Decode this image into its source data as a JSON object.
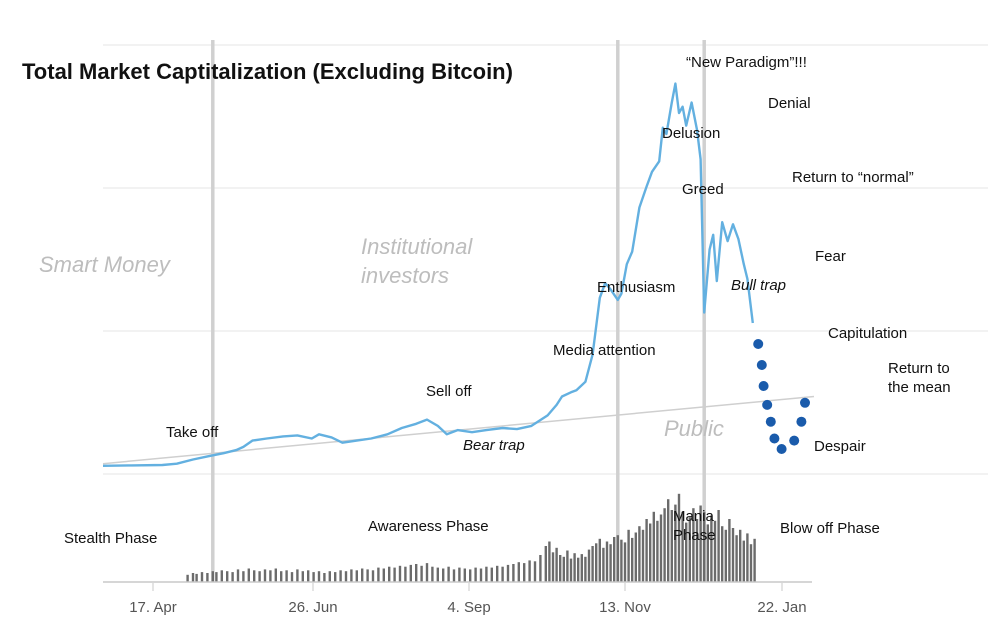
{
  "chart_data": {
    "type": "line",
    "title": "Total Market Captitalization (Excluding Bitcoin)",
    "x_tick_labels": [
      "17. Apr",
      "26. Jun",
      "4. Sep",
      "13. Nov",
      "22. Jan"
    ],
    "grid": "horizontal",
    "phase_labels_large": [
      "Smart Money",
      "Institutional",
      "investors",
      "Public"
    ],
    "phase_labels": [
      "Stealth Phase",
      "Awareness Phase",
      "Mania",
      "Phase",
      "Blow off Phase"
    ],
    "annotations": [
      {
        "text": "“New Paradigm”!!!",
        "italic": false
      },
      {
        "text": "Denial",
        "italic": false
      },
      {
        "text": "Delusion",
        "italic": false
      },
      {
        "text": "Greed",
        "italic": false
      },
      {
        "text": "Return to “normal”",
        "italic": false
      },
      {
        "text": "Fear",
        "italic": false
      },
      {
        "text": "Bull trap",
        "italic": true
      },
      {
        "text": "Enthusiasm",
        "italic": false
      },
      {
        "text": "Media attention",
        "italic": false
      },
      {
        "text": "Capitulation",
        "italic": false
      },
      {
        "text": "Return to",
        "italic": false
      },
      {
        "text": "the mean",
        "italic": false
      },
      {
        "text": "Sell off",
        "italic": false
      },
      {
        "text": "Bear trap",
        "italic": true
      },
      {
        "text": "Take off",
        "italic": false
      },
      {
        "text": "Despair",
        "italic": false
      }
    ],
    "series": [
      {
        "values": [
          {
            "x": 0,
            "y": 2
          },
          {
            "x": 16,
            "y": 2.2
          },
          {
            "x": 33,
            "y": 2.4
          },
          {
            "x": 41,
            "y": 3
          },
          {
            "x": 50,
            "y": 5
          },
          {
            "x": 58,
            "y": 6.5
          },
          {
            "x": 67,
            "y": 8
          },
          {
            "x": 74,
            "y": 9.5
          },
          {
            "x": 78,
            "y": 11
          },
          {
            "x": 83,
            "y": 14
          },
          {
            "x": 91,
            "y": 15
          },
          {
            "x": 100,
            "y": 16
          },
          {
            "x": 108,
            "y": 16.5
          },
          {
            "x": 116,
            "y": 15
          },
          {
            "x": 120,
            "y": 17
          },
          {
            "x": 127,
            "y": 15.5
          },
          {
            "x": 133,
            "y": 13
          },
          {
            "x": 141,
            "y": 14
          },
          {
            "x": 149,
            "y": 15
          },
          {
            "x": 158,
            "y": 17
          },
          {
            "x": 166,
            "y": 20
          },
          {
            "x": 174,
            "y": 22
          },
          {
            "x": 180,
            "y": 24
          },
          {
            "x": 186,
            "y": 21
          },
          {
            "x": 191,
            "y": 17
          },
          {
            "x": 197,
            "y": 19
          },
          {
            "x": 205,
            "y": 18
          },
          {
            "x": 213,
            "y": 19
          },
          {
            "x": 222,
            "y": 20
          },
          {
            "x": 230,
            "y": 19.5
          },
          {
            "x": 238,
            "y": 21
          },
          {
            "x": 247,
            "y": 26
          },
          {
            "x": 252,
            "y": 31
          },
          {
            "x": 255,
            "y": 35
          },
          {
            "x": 260,
            "y": 37
          },
          {
            "x": 263,
            "y": 38
          },
          {
            "x": 268,
            "y": 42
          },
          {
            "x": 272,
            "y": 55
          },
          {
            "x": 276,
            "y": 82
          },
          {
            "x": 279,
            "y": 89
          },
          {
            "x": 282,
            "y": 86
          },
          {
            "x": 286,
            "y": 81
          },
          {
            "x": 288,
            "y": 84
          },
          {
            "x": 291,
            "y": 98
          },
          {
            "x": 294,
            "y": 104
          },
          {
            "x": 298,
            "y": 125
          },
          {
            "x": 302,
            "y": 135
          },
          {
            "x": 305,
            "y": 142
          },
          {
            "x": 309,
            "y": 147
          },
          {
            "x": 311,
            "y": 163
          },
          {
            "x": 313,
            "y": 160
          },
          {
            "x": 316,
            "y": 175
          },
          {
            "x": 318,
            "y": 184
          },
          {
            "x": 320,
            "y": 170
          },
          {
            "x": 322,
            "y": 173
          },
          {
            "x": 324,
            "y": 164
          },
          {
            "x": 327,
            "y": 175
          },
          {
            "x": 330,
            "y": 162
          },
          {
            "x": 332,
            "y": 148
          },
          {
            "x": 334,
            "y": 75
          },
          {
            "x": 337,
            "y": 105
          },
          {
            "x": 339,
            "y": 112
          },
          {
            "x": 341,
            "y": 90
          },
          {
            "x": 344,
            "y": 118
          },
          {
            "x": 347,
            "y": 109
          },
          {
            "x": 350,
            "y": 117
          },
          {
            "x": 353,
            "y": 110
          },
          {
            "x": 356,
            "y": 98
          },
          {
            "x": 358,
            "y": 91
          },
          {
            "x": 361,
            "y": 70
          }
        ]
      }
    ],
    "projection_dots": [
      {
        "x": 364,
        "y": 60
      },
      {
        "x": 366,
        "y": 50
      },
      {
        "x": 367,
        "y": 40
      },
      {
        "x": 369,
        "y": 31
      },
      {
        "x": 371,
        "y": 23
      },
      {
        "x": 373,
        "y": 15
      },
      {
        "x": 377,
        "y": 10
      },
      {
        "x": 384,
        "y": 14
      },
      {
        "x": 388,
        "y": 23
      },
      {
        "x": 390,
        "y": 32
      }
    ],
    "trend_line": [
      {
        "x": 0,
        "y": 3
      },
      {
        "x": 395,
        "y": 35
      }
    ],
    "phase_dividers_x": [
      61,
      286,
      334
    ],
    "volume_bars": [
      {
        "x": 47,
        "v": 8
      },
      {
        "x": 50,
        "v": 10
      },
      {
        "x": 52,
        "v": 9
      },
      {
        "x": 55,
        "v": 11
      },
      {
        "x": 58,
        "v": 10
      },
      {
        "x": 61,
        "v": 12
      },
      {
        "x": 63,
        "v": 11
      },
      {
        "x": 66,
        "v": 13
      },
      {
        "x": 69,
        "v": 12
      },
      {
        "x": 72,
        "v": 11
      },
      {
        "x": 75,
        "v": 14
      },
      {
        "x": 78,
        "v": 12
      },
      {
        "x": 81,
        "v": 15
      },
      {
        "x": 84,
        "v": 13
      },
      {
        "x": 87,
        "v": 12
      },
      {
        "x": 90,
        "v": 14
      },
      {
        "x": 93,
        "v": 13
      },
      {
        "x": 96,
        "v": 15
      },
      {
        "x": 99,
        "v": 12
      },
      {
        "x": 102,
        "v": 13
      },
      {
        "x": 105,
        "v": 11
      },
      {
        "x": 108,
        "v": 14
      },
      {
        "x": 111,
        "v": 12
      },
      {
        "x": 114,
        "v": 13
      },
      {
        "x": 117,
        "v": 11
      },
      {
        "x": 120,
        "v": 12
      },
      {
        "x": 123,
        "v": 10
      },
      {
        "x": 126,
        "v": 12
      },
      {
        "x": 129,
        "v": 11
      },
      {
        "x": 132,
        "v": 13
      },
      {
        "x": 135,
        "v": 12
      },
      {
        "x": 138,
        "v": 14
      },
      {
        "x": 141,
        "v": 13
      },
      {
        "x": 144,
        "v": 15
      },
      {
        "x": 147,
        "v": 14
      },
      {
        "x": 150,
        "v": 13
      },
      {
        "x": 153,
        "v": 16
      },
      {
        "x": 156,
        "v": 15
      },
      {
        "x": 159,
        "v": 17
      },
      {
        "x": 162,
        "v": 16
      },
      {
        "x": 165,
        "v": 18
      },
      {
        "x": 168,
        "v": 17
      },
      {
        "x": 171,
        "v": 19
      },
      {
        "x": 174,
        "v": 20
      },
      {
        "x": 177,
        "v": 18
      },
      {
        "x": 180,
        "v": 21
      },
      {
        "x": 183,
        "v": 17
      },
      {
        "x": 186,
        "v": 16
      },
      {
        "x": 189,
        "v": 15
      },
      {
        "x": 192,
        "v": 17
      },
      {
        "x": 195,
        "v": 14
      },
      {
        "x": 198,
        "v": 16
      },
      {
        "x": 201,
        "v": 15
      },
      {
        "x": 204,
        "v": 14
      },
      {
        "x": 207,
        "v": 16
      },
      {
        "x": 210,
        "v": 15
      },
      {
        "x": 213,
        "v": 17
      },
      {
        "x": 216,
        "v": 16
      },
      {
        "x": 219,
        "v": 18
      },
      {
        "x": 222,
        "v": 17
      },
      {
        "x": 225,
        "v": 19
      },
      {
        "x": 228,
        "v": 20
      },
      {
        "x": 231,
        "v": 22
      },
      {
        "x": 234,
        "v": 21
      },
      {
        "x": 237,
        "v": 24
      },
      {
        "x": 240,
        "v": 23
      },
      {
        "x": 243,
        "v": 30
      },
      {
        "x": 246,
        "v": 40
      },
      {
        "x": 248,
        "v": 45
      },
      {
        "x": 250,
        "v": 33
      },
      {
        "x": 252,
        "v": 38
      },
      {
        "x": 254,
        "v": 30
      },
      {
        "x": 256,
        "v": 28
      },
      {
        "x": 258,
        "v": 35
      },
      {
        "x": 260,
        "v": 26
      },
      {
        "x": 262,
        "v": 32
      },
      {
        "x": 264,
        "v": 27
      },
      {
        "x": 266,
        "v": 31
      },
      {
        "x": 268,
        "v": 28
      },
      {
        "x": 270,
        "v": 36
      },
      {
        "x": 272,
        "v": 40
      },
      {
        "x": 274,
        "v": 43
      },
      {
        "x": 276,
        "v": 48
      },
      {
        "x": 278,
        "v": 38
      },
      {
        "x": 280,
        "v": 45
      },
      {
        "x": 282,
        "v": 42
      },
      {
        "x": 284,
        "v": 50
      },
      {
        "x": 286,
        "v": 52
      },
      {
        "x": 288,
        "v": 47
      },
      {
        "x": 290,
        "v": 44
      },
      {
        "x": 292,
        "v": 58
      },
      {
        "x": 294,
        "v": 49
      },
      {
        "x": 296,
        "v": 55
      },
      {
        "x": 298,
        "v": 62
      },
      {
        "x": 300,
        "v": 58
      },
      {
        "x": 302,
        "v": 70
      },
      {
        "x": 304,
        "v": 65
      },
      {
        "x": 306,
        "v": 78
      },
      {
        "x": 308,
        "v": 68
      },
      {
        "x": 310,
        "v": 75
      },
      {
        "x": 312,
        "v": 82
      },
      {
        "x": 314,
        "v": 92
      },
      {
        "x": 316,
        "v": 80
      },
      {
        "x": 318,
        "v": 86
      },
      {
        "x": 320,
        "v": 98
      },
      {
        "x": 322,
        "v": 78
      },
      {
        "x": 324,
        "v": 66
      },
      {
        "x": 326,
        "v": 72
      },
      {
        "x": 328,
        "v": 82
      },
      {
        "x": 330,
        "v": 70
      },
      {
        "x": 332,
        "v": 85
      },
      {
        "x": 334,
        "v": 78
      },
      {
        "x": 336,
        "v": 64
      },
      {
        "x": 338,
        "v": 74
      },
      {
        "x": 340,
        "v": 68
      },
      {
        "x": 342,
        "v": 80
      },
      {
        "x": 344,
        "v": 62
      },
      {
        "x": 346,
        "v": 58
      },
      {
        "x": 348,
        "v": 70
      },
      {
        "x": 350,
        "v": 60
      },
      {
        "x": 352,
        "v": 52
      },
      {
        "x": 354,
        "v": 58
      },
      {
        "x": 356,
        "v": 46
      },
      {
        "x": 358,
        "v": 54
      },
      {
        "x": 360,
        "v": 42
      },
      {
        "x": 362,
        "v": 48
      }
    ]
  }
}
